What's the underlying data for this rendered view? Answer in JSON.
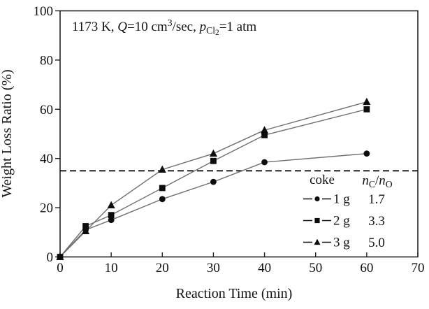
{
  "figure": {
    "background": "#ffffff",
    "frame_color": "#222222",
    "series_line_color": "#6f6f6f",
    "marker_color": "#0d0d0d",
    "reference_line_color": "#111111"
  },
  "annotation": {
    "text": "1173 K, Q=10 cm3/sec, pCl2=1 atm",
    "parts": [
      {
        "t": "1173 K, ",
        "style": "normal"
      },
      {
        "t": "Q",
        "style": "italic"
      },
      {
        "t": "=10 cm",
        "style": "normal"
      },
      {
        "t": "3",
        "style": "super"
      },
      {
        "t": "/sec, ",
        "style": "normal"
      },
      {
        "t": "p",
        "style": "italic"
      },
      {
        "t": "Cl",
        "style": "sub"
      },
      {
        "t": "2",
        "style": "subsub"
      },
      {
        "t": "=1 atm",
        "style": "normal"
      }
    ]
  },
  "chart_data": {
    "type": "line",
    "title": "",
    "xlabel": "Reaction Time (min)",
    "ylabel": "Weight Loss Ratio (%)",
    "xlim": [
      0,
      70
    ],
    "ylim": [
      0,
      100
    ],
    "xticks": [
      0,
      10,
      20,
      30,
      40,
      50,
      60,
      70
    ],
    "yticks": [
      0,
      20,
      40,
      60,
      80,
      100
    ],
    "grid": false,
    "x": [
      0,
      5,
      10,
      20,
      30,
      40,
      60
    ],
    "series": [
      {
        "name": "1 g",
        "marker": "circle",
        "nc_no": "1.7",
        "values": [
          0,
          11,
          15,
          23.5,
          30.5,
          38.5,
          42
        ]
      },
      {
        "name": "2 g",
        "marker": "square",
        "nc_no": "3.3",
        "values": [
          0,
          12.5,
          17,
          28,
          39,
          49.5,
          60
        ]
      },
      {
        "name": "3 g",
        "marker": "triangle",
        "nc_no": "5.0",
        "values": [
          0,
          10.5,
          21,
          35.5,
          42,
          51.5,
          63
        ]
      }
    ],
    "dashed_reference_line_y": 35,
    "legend": {
      "position": "inside-lower-right",
      "col1_header": "coke",
      "col2_header": "nC/nO",
      "col2_header_parts": [
        {
          "t": "n",
          "style": "italic"
        },
        {
          "t": "C",
          "style": "sub"
        },
        {
          "t": "/",
          "style": "normal"
        },
        {
          "t": "n",
          "style": "italic"
        },
        {
          "t": "O",
          "style": "sub"
        }
      ],
      "rows": [
        {
          "marker": "circle",
          "label": "1 g",
          "ratio": "1.7"
        },
        {
          "marker": "square",
          "label": "2 g",
          "ratio": "3.3"
        },
        {
          "marker": "triangle",
          "label": "3 g",
          "ratio": "5.0"
        }
      ]
    }
  }
}
